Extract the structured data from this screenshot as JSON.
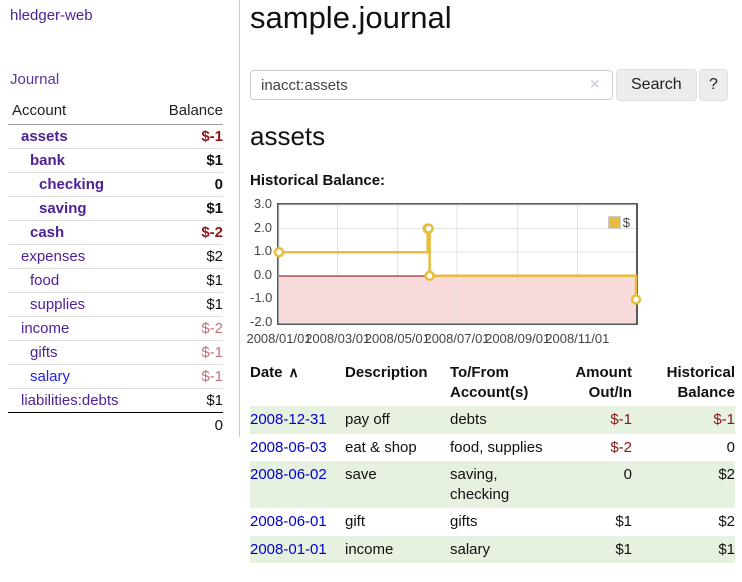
{
  "app": {
    "brand": "hledger-web",
    "nav_journal": "Journal"
  },
  "colors": {
    "link_purple": "#4f2197",
    "link_blue": "#2222ee",
    "date_link_blue": "#0000d0",
    "negative_red": "#8f1414",
    "negative_faded": "#bd7478",
    "stripe_green": "#e6f1e0",
    "chart_gold": "#e8bc3e",
    "negative_region_pink": "#f9dada",
    "zero_line_red": "#8b0000"
  },
  "sidebar": {
    "header": {
      "account": "Account",
      "balance": "Balance"
    },
    "accounts": [
      {
        "name": "assets",
        "depth": 1,
        "balance": "$-1",
        "in_filter": true,
        "balance_tone": "negative"
      },
      {
        "name": "bank",
        "depth": 2,
        "balance": "$1",
        "in_filter": true,
        "balance_tone": "normal"
      },
      {
        "name": "checking",
        "depth": 3,
        "balance": "0",
        "in_filter": true,
        "balance_tone": "normal"
      },
      {
        "name": "saving",
        "depth": 3,
        "balance": "$1",
        "in_filter": true,
        "balance_tone": "normal"
      },
      {
        "name": "cash",
        "depth": 2,
        "balance": "$-2",
        "in_filter": true,
        "balance_tone": "negative"
      },
      {
        "name": "expenses",
        "depth": 1,
        "balance": "$2",
        "in_filter": false,
        "balance_tone": "normal"
      },
      {
        "name": "food",
        "depth": 2,
        "balance": "$1",
        "in_filter": false,
        "balance_tone": "normal"
      },
      {
        "name": "supplies",
        "depth": 2,
        "balance": "$1",
        "in_filter": false,
        "balance_tone": "normal"
      },
      {
        "name": "income",
        "depth": 1,
        "balance": "$-2",
        "in_filter": false,
        "balance_tone": "negative-faded"
      },
      {
        "name": "gifts",
        "depth": 2,
        "balance": "$-1",
        "in_filter": false,
        "balance_tone": "negative-faded"
      },
      {
        "name": "salary",
        "depth": 2,
        "balance": "$-1",
        "in_filter": false,
        "balance_tone": "negative-faded",
        "link_tone": "unvisited"
      },
      {
        "name": "liabilities:debts",
        "depth": 1,
        "balance": "$1",
        "in_filter": false,
        "balance_tone": "normal"
      }
    ],
    "total": "0"
  },
  "main": {
    "title": "sample.journal",
    "search": {
      "value": "inacct:assets",
      "clear_icon": "×",
      "button": "Search",
      "help_button": "?"
    },
    "account_heading": "assets",
    "chart_heading": "Historical Balance:"
  },
  "chart_data": {
    "type": "line",
    "step": true,
    "title": "Historical Balance",
    "series": [
      {
        "name": "$",
        "color": "#e8bc3e",
        "points": [
          [
            "2008-01-01",
            1
          ],
          [
            "2008-06-01",
            2
          ],
          [
            "2008-06-02",
            2
          ],
          [
            "2008-06-03",
            0
          ],
          [
            "2008-12-31",
            -1
          ]
        ]
      }
    ],
    "x_domain": [
      "2008-01-01",
      "2008-12-31"
    ],
    "x_ticks": [
      "2008-01-01",
      "2008-03-01",
      "2008-05-01",
      "2008-07-01",
      "2008-09-01",
      "2008-11-01"
    ],
    "x_tick_labels": [
      "2008/01/01",
      "2008/03/01",
      "2008/05/01",
      "2008/07/01",
      "2008/09/01",
      "2008/11/01"
    ],
    "ylim": [
      -2,
      3
    ],
    "y_ticks": [
      3,
      2,
      1,
      0,
      -1,
      -2
    ],
    "y_tick_labels": [
      "3.0",
      "2.0",
      "1.0",
      "0.0",
      "-1.0",
      "-2.0"
    ],
    "grid": true,
    "legend_position": "top-right",
    "legend_label": "$",
    "negative_region": true
  },
  "register": {
    "headers": {
      "date": "Date",
      "sort_icon": "∧",
      "description": "Description",
      "account": "To/From Account(s)",
      "amount": "Amount Out/In",
      "balance": "Historical Balance"
    },
    "rows": [
      {
        "date": "2008-12-31",
        "description": "pay off",
        "accounts": "debts",
        "amount": "$-1",
        "balance": "$-1"
      },
      {
        "date": "2008-06-03",
        "description": "eat & shop",
        "accounts": "food, supplies",
        "amount": "$-2",
        "balance": "0"
      },
      {
        "date": "2008-06-02",
        "description": "save",
        "accounts": "saving, checking",
        "amount": "0",
        "balance": "$2"
      },
      {
        "date": "2008-06-01",
        "description": "gift",
        "accounts": "gifts",
        "amount": "$1",
        "balance": "$2"
      },
      {
        "date": "2008-01-01",
        "description": "income",
        "accounts": "salary",
        "amount": "$1",
        "balance": "$1"
      }
    ]
  }
}
